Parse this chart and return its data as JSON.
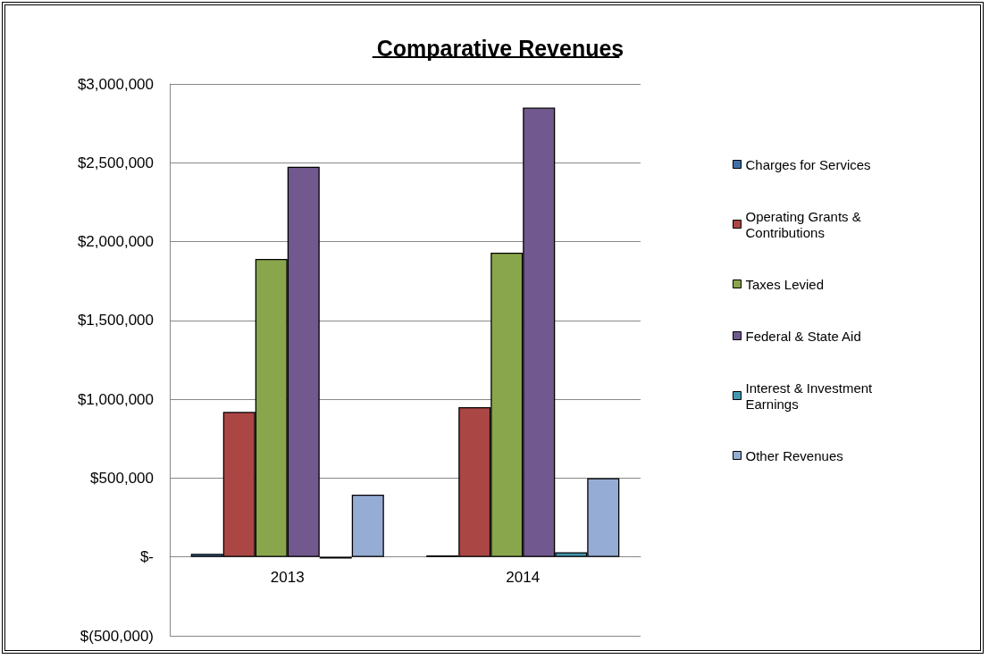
{
  "chart_data": {
    "type": "bar",
    "title": "Comparative Revenues",
    "categories": [
      "2013",
      "2014"
    ],
    "series": [
      {
        "name": "Charges for Services",
        "color": "#3f70a8",
        "values": [
          20000,
          10000
        ]
      },
      {
        "name": "Operating Grants & Contributions",
        "color": "#aa4644",
        "values": [
          920000,
          950000
        ]
      },
      {
        "name": "Taxes Levied",
        "color": "#8aa64c",
        "values": [
          1890000,
          1930000
        ]
      },
      {
        "name": "Federal & State Aid",
        "color": "#71588f",
        "values": [
          2475000,
          2850000
        ]
      },
      {
        "name": "Interest & Investment Earnings",
        "color": "#4198af",
        "values": [
          -10000,
          30000
        ]
      },
      {
        "name": "Other Revenues",
        "color": "#95acd4",
        "values": [
          395000,
          500000
        ]
      }
    ],
    "ylim": [
      -500000,
      3000000
    ],
    "yticks": [
      {
        "value": -500000,
        "label": "$(500,000)"
      },
      {
        "value": 0,
        "label": "$-"
      },
      {
        "value": 500000,
        "label": "$500,000"
      },
      {
        "value": 1000000,
        "label": "$1,000,000"
      },
      {
        "value": 1500000,
        "label": "$1,500,000"
      },
      {
        "value": 2000000,
        "label": "$2,000,000"
      },
      {
        "value": 2500000,
        "label": "$2,500,000"
      },
      {
        "value": 3000000,
        "label": "$3,000,000"
      }
    ],
    "grid": "y",
    "legend": "right"
  }
}
